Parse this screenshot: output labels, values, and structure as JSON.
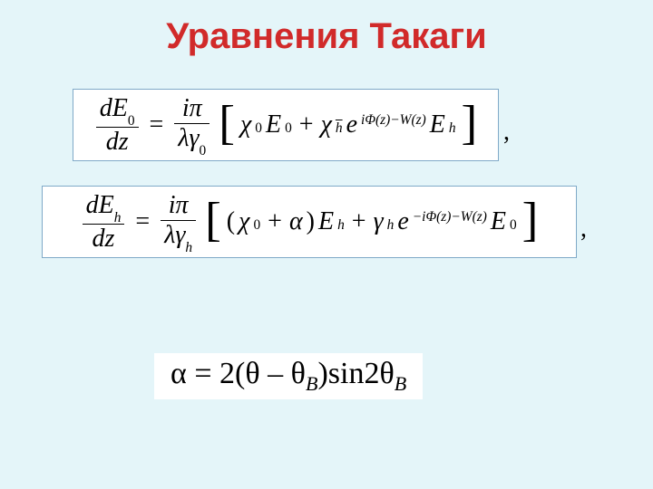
{
  "colors": {
    "background": "#e4f5f9",
    "box_bg": "#ffffff",
    "box_border": "#7fa9c8",
    "title": "#d12a2a",
    "text": "#000000"
  },
  "title": "Уравнения Такаги",
  "equations": {
    "eq1": {
      "lhs_num": "dE",
      "lhs_num_sub": "0",
      "lhs_den": "dz",
      "rhs_coef_num": "iπ",
      "rhs_coef_den_a": "λγ",
      "rhs_coef_den_sub": "0",
      "t1a": "χ",
      "t1a_sub": "0",
      "t1b": "E",
      "t1b_sub": "0",
      "t2a": "χ",
      "t2a_sub": "h",
      "exp_pre": "e",
      "exp_body": "iΦ(z)−W(z)",
      "t2b": "E",
      "t2b_sub": "h"
    },
    "eq2": {
      "lhs_num": "dE",
      "lhs_num_sub": "h",
      "lhs_den": "dz",
      "rhs_coef_num": "iπ",
      "rhs_coef_den_a": "λγ",
      "rhs_coef_den_sub": "h",
      "inner_a": "χ",
      "inner_a_sub": "0",
      "inner_plus": "α",
      "t1b": "E",
      "t1b_sub": "h",
      "t2a": "γ",
      "t2a_sub": "h",
      "exp_pre": "e",
      "exp_body": "−iΦ(z)−W(z)",
      "t2b": "E",
      "t2b_sub": "0"
    },
    "eq3": {
      "lhs": "α",
      "coef": "2",
      "theta": "θ",
      "thetaB": "θ",
      "sin": "sin2",
      "thetaB2": "θ",
      "sub": "B"
    }
  },
  "punct": {
    "comma": ","
  }
}
